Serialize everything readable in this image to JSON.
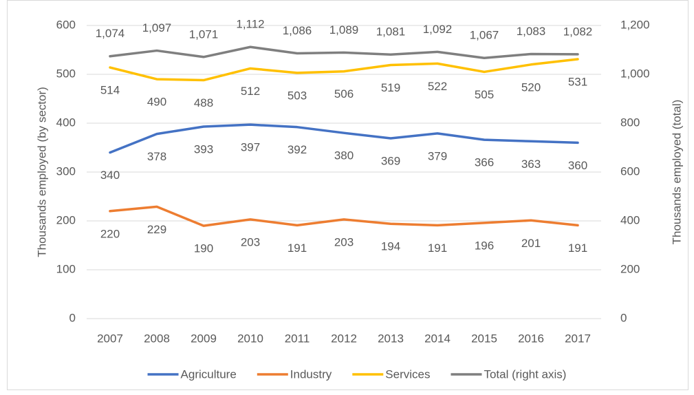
{
  "chart_data": {
    "type": "line",
    "categories": [
      "2007",
      "2008",
      "2009",
      "2010",
      "2011",
      "2012",
      "2013",
      "2014",
      "2015",
      "2016",
      "2017"
    ],
    "series": [
      {
        "name": "Agriculture",
        "color": "#4472c4",
        "values": [
          340,
          378,
          393,
          397,
          392,
          380,
          369,
          379,
          366,
          363,
          360
        ]
      },
      {
        "name": "Industry",
        "color": "#ed7d31",
        "values": [
          220,
          229,
          190,
          203,
          191,
          203,
          194,
          191,
          196,
          201,
          191
        ]
      },
      {
        "name": "Services",
        "color": "#ffc000",
        "values": [
          514,
          490,
          488,
          512,
          503,
          506,
          519,
          522,
          505,
          520,
          531
        ]
      },
      {
        "name": "Total (right axis)",
        "color": "#7f7f7f",
        "axis": "y2",
        "values": [
          1074,
          1097,
          1071,
          1112,
          1086,
          1089,
          1081,
          1092,
          1067,
          1083,
          1082
        ],
        "value_labels": [
          "1,074",
          "1,097",
          "1,071",
          "1,112",
          "1,086",
          "1,089",
          "1,081",
          "1,092",
          "1,067",
          "1,083",
          "1,082"
        ]
      }
    ],
    "ylabel": "Thousands employed (by sector)",
    "y2label": "Thousands employed (total)",
    "ylim": [
      0,
      600
    ],
    "yticks": [
      0,
      100,
      200,
      300,
      400,
      500,
      600
    ],
    "y2lim": [
      0,
      1200
    ],
    "y2ticks": [
      0,
      200,
      400,
      600,
      800,
      {
        "value": 1000,
        "label": "1,000"
      },
      {
        "value": 1200,
        "label": "1,200"
      }
    ],
    "grid": true,
    "legend": "bottom"
  }
}
